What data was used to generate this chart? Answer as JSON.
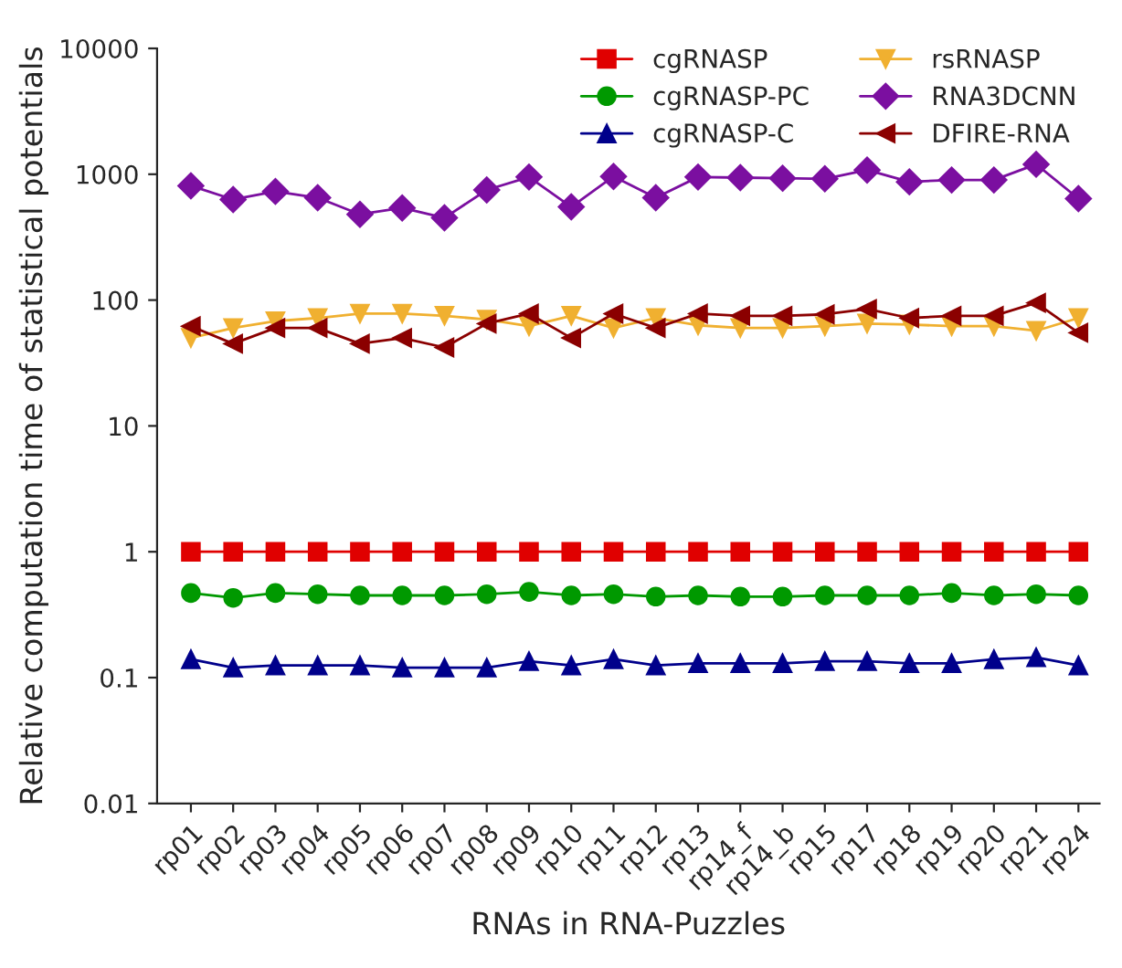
{
  "chart_data": {
    "type": "line",
    "xlabel": "RNAs in RNA-Puzzles",
    "ylabel": "Relative computation time of statistical potentials",
    "categories": [
      "rp01",
      "rp02",
      "rp03",
      "rp04",
      "rp05",
      "rp06",
      "rp07",
      "rp08",
      "rp09",
      "rp10",
      "rp11",
      "rp12",
      "rp13",
      "rp14_f",
      "rp14_b",
      "rp15",
      "rp17",
      "rp18",
      "rp19",
      "rp20",
      "rp21",
      "rp24"
    ],
    "log": "y",
    "ylim": [
      0.01,
      10000
    ],
    "yticks": [
      {
        "value": 0.01,
        "label": "0.01"
      },
      {
        "value": 0.1,
        "label": "0.1"
      },
      {
        "value": 1,
        "label": "1"
      },
      {
        "value": 10,
        "label": "10"
      },
      {
        "value": 100,
        "label": "100"
      },
      {
        "value": 1000,
        "label": "1000"
      },
      {
        "value": 10000,
        "label": "10000"
      }
    ],
    "grid": false,
    "legend": "top right",
    "series": [
      {
        "name": "cgRNASP",
        "color": "#e00000",
        "marker": "square",
        "values": [
          1,
          1,
          1,
          1,
          1,
          1,
          1,
          1,
          1,
          1,
          1,
          1,
          1,
          1,
          1,
          1,
          1,
          1,
          1,
          1,
          1,
          1
        ]
      },
      {
        "name": "cgRNASP-PC",
        "color": "#009900",
        "marker": "circle",
        "values": [
          0.47,
          0.43,
          0.47,
          0.46,
          0.45,
          0.45,
          0.45,
          0.46,
          0.48,
          0.45,
          0.46,
          0.44,
          0.45,
          0.44,
          0.44,
          0.45,
          0.45,
          0.45,
          0.47,
          0.45,
          0.46,
          0.45
        ]
      },
      {
        "name": "cgRNASP-C",
        "color": "#00008b",
        "marker": "triangle",
        "values": [
          0.14,
          0.12,
          0.125,
          0.125,
          0.125,
          0.12,
          0.12,
          0.12,
          0.135,
          0.125,
          0.14,
          0.125,
          0.13,
          0.13,
          0.13,
          0.135,
          0.135,
          0.13,
          0.13,
          0.14,
          0.145,
          0.125
        ]
      },
      {
        "name": "rsRNASP",
        "color": "#f0b030",
        "marker": "triangle_down",
        "values": [
          50,
          60,
          68,
          72,
          78,
          78,
          75,
          70,
          62,
          75,
          60,
          72,
          63,
          60,
          60,
          62,
          65,
          64,
          62,
          62,
          57,
          72
        ]
      },
      {
        "name": "RNA3DCNN",
        "color": "#7b0fa0",
        "marker": "diamond",
        "values": [
          810,
          630,
          730,
          650,
          480,
          540,
          450,
          750,
          950,
          550,
          960,
          650,
          950,
          940,
          930,
          920,
          1080,
          870,
          900,
          900,
          1200,
          640
        ]
      },
      {
        "name": "DFIRE-RNA",
        "color": "#8b0000",
        "marker": "triangle_left",
        "values": [
          62,
          45,
          60,
          60,
          45,
          50,
          42,
          65,
          78,
          50,
          78,
          60,
          78,
          75,
          75,
          77,
          85,
          72,
          75,
          75,
          95,
          55
        ]
      }
    ]
  }
}
